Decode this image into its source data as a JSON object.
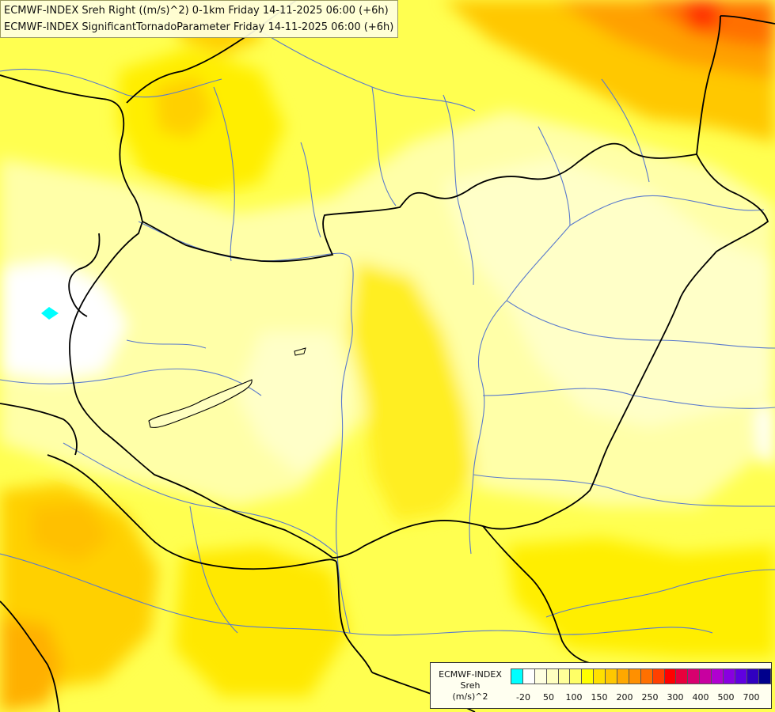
{
  "titles": {
    "line1": "ECMWF-INDEX Sreh Right ((m/s)^2) 0-1km Friday 14-11-2025 06:00 (+6h)",
    "line2": "ECMWF-INDEX SignificantTornadoParameter Friday 14-11-2025 06:00 (+6h)"
  },
  "legend": {
    "line1": "ECMWF-INDEX",
    "line2": "Sreh",
    "line3": "(m/s)^2",
    "colors": [
      "#00ffff",
      "#ffffff",
      "#ffffe0",
      "#ffffc0",
      "#ffff99",
      "#ffff66",
      "#ffff00",
      "#ffe000",
      "#ffc800",
      "#ffa800",
      "#ff9000",
      "#ff7000",
      "#ff4000",
      "#ff0000",
      "#e8003c",
      "#d8006e",
      "#c800a0",
      "#b000d0",
      "#8800e0",
      "#6000e0",
      "#3000c0",
      "#00008c"
    ],
    "ticks": [
      "-20",
      "50",
      "100",
      "150",
      "200",
      "250",
      "300",
      "400",
      "500",
      "700"
    ]
  },
  "colors": {
    "background": "#ffff50",
    "border_line": "#000000",
    "river_line": "#5a7acc"
  }
}
